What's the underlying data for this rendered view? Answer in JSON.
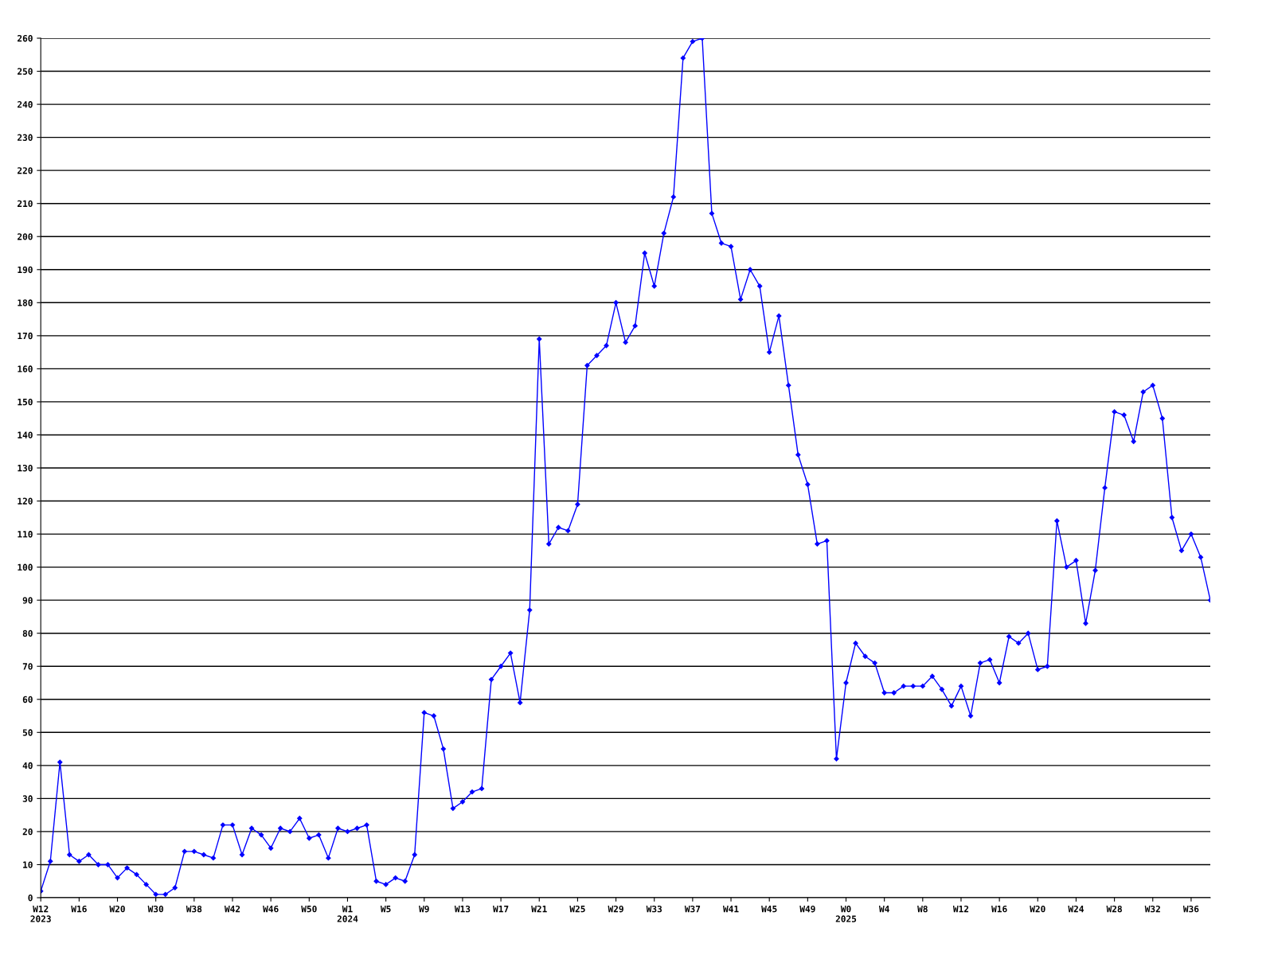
{
  "chart_data": {
    "type": "line",
    "categories": [
      "W12\n2023",
      null,
      null,
      null,
      "W16",
      null,
      null,
      null,
      "W20",
      null,
      null,
      null,
      "W30",
      null,
      null,
      null,
      "W38",
      null,
      null,
      null,
      "W42",
      null,
      null,
      null,
      "W46",
      null,
      null,
      null,
      "W50",
      null,
      null,
      null,
      "W1\n2024",
      null,
      null,
      null,
      "W5",
      null,
      null,
      null,
      "W9",
      null,
      null,
      null,
      "W13",
      null,
      null,
      null,
      "W17",
      null,
      null,
      null,
      "W21",
      null,
      null,
      null,
      "W25",
      null,
      null,
      null,
      "W29",
      null,
      null,
      null,
      "W33",
      null,
      null,
      null,
      "W37",
      null,
      null,
      null,
      "W41",
      null,
      null,
      null,
      "W45",
      null,
      null,
      null,
      "W49",
      null,
      null,
      null,
      "W0\n2025",
      null,
      null,
      null,
      "W4",
      null,
      null,
      null,
      "W8",
      null,
      null,
      null,
      "W12",
      null,
      null,
      null,
      "W16",
      null,
      null,
      null,
      "W20",
      null,
      null,
      null,
      "W24",
      null,
      null,
      null,
      "W28",
      null,
      null,
      null,
      "W32",
      null,
      null,
      null,
      "W36",
      null,
      null
    ],
    "series": [
      {
        "color": "#0000ff",
        "values": [
          2,
          11,
          41,
          13,
          11,
          13,
          10,
          10,
          6,
          9,
          7,
          4,
          1,
          1,
          3,
          14,
          14,
          13,
          12,
          22,
          22,
          13,
          21,
          19,
          15,
          21,
          20,
          24,
          18,
          19,
          12,
          21,
          20,
          21,
          22,
          5,
          4,
          6,
          5,
          13,
          56,
          55,
          45,
          27,
          29,
          32,
          33,
          66,
          70,
          74,
          59,
          87,
          169,
          107,
          112,
          111,
          119,
          161,
          164,
          167,
          180,
          168,
          173,
          195,
          185,
          201,
          212,
          254,
          259,
          260,
          207,
          198,
          197,
          181,
          190,
          185,
          165,
          176,
          155,
          134,
          125,
          107,
          108,
          42,
          65,
          77,
          73,
          71,
          62,
          62,
          64,
          64,
          64,
          67,
          63,
          58,
          64,
          55,
          71,
          72,
          65,
          79,
          77,
          80,
          69,
          70,
          114,
          100,
          102,
          83,
          99,
          124,
          147,
          146,
          138,
          153,
          155,
          145,
          115,
          105,
          110,
          103,
          90
        ]
      }
    ],
    "ylim": [
      0,
      260
    ],
    "yticks": [
      0,
      10,
      20,
      30,
      40,
      50,
      60,
      70,
      80,
      90,
      100,
      110,
      120,
      130,
      140,
      150,
      160,
      170,
      180,
      190,
      200,
      210,
      220,
      230,
      240,
      250,
      260
    ],
    "grid": "y",
    "marker": "diamond",
    "line_style": "solid"
  }
}
